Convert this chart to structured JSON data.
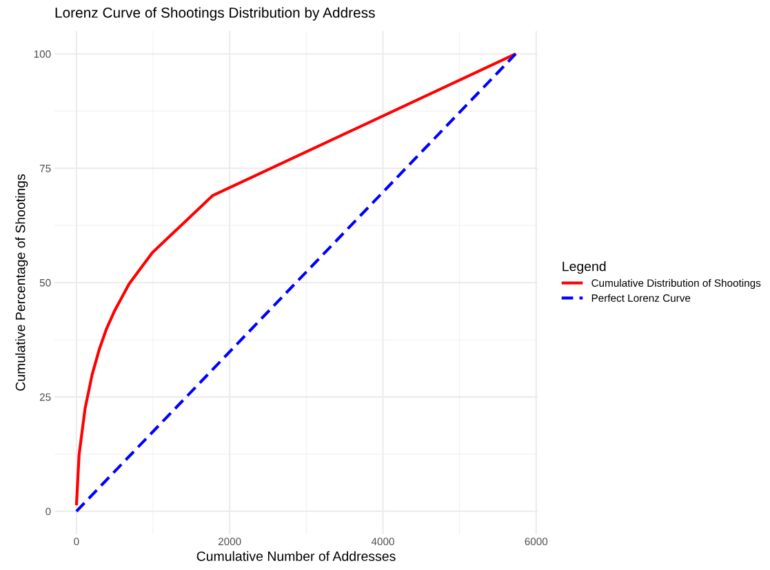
{
  "chart_data": {
    "type": "line",
    "title": "Lorenz Curve of Shootings Distribution by Address",
    "xlabel": "Cumulative Number of Addresses",
    "ylabel": "Cumulative Percentage of Shootings",
    "legend_title": "Legend",
    "series": [
      {
        "name": "Cumulative Distribution of Shootings",
        "color": "#ff0000",
        "line_style": "solid",
        "x": [
          0,
          34,
          112,
          205,
          298,
          392,
          500,
          687,
          989,
          1775,
          5733
        ],
        "values": [
          1.3,
          12.3,
          22.4,
          29.9,
          35.4,
          39.9,
          43.9,
          49.7,
          56.5,
          69.0,
          100
        ]
      },
      {
        "name": "Perfect Lorenz Curve",
        "color": "#0000ff",
        "line_style": "dashed",
        "x": [
          0,
          5733
        ],
        "values": [
          0,
          100
        ]
      }
    ],
    "xlim": [
      -287,
      6020
    ],
    "ylim": [
      -5,
      105
    ],
    "xticks": [
      0,
      2000,
      4000,
      6000
    ],
    "yticks": [
      0,
      25,
      50,
      75,
      100
    ],
    "grid": true,
    "legend": "right",
    "marker": "none"
  }
}
